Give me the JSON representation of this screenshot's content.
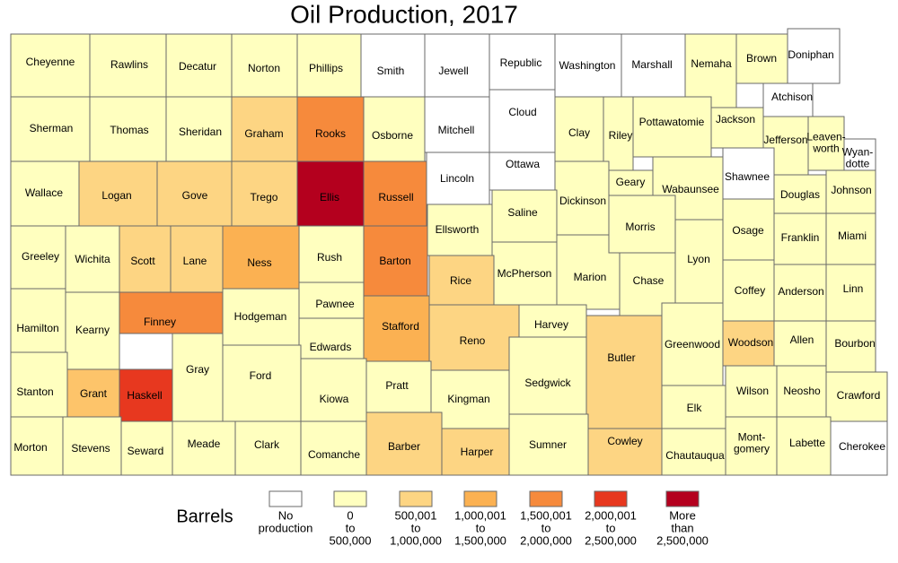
{
  "title": "Oil Production, 2017",
  "legend": {
    "title": "Barrels",
    "items": [
      {
        "label": [
          "No",
          "production"
        ],
        "color": "#ffffff"
      },
      {
        "label": [
          "0",
          "to",
          "500,000"
        ],
        "color": "#ffffbf"
      },
      {
        "label": [
          "500,001",
          "to",
          "1,000,000"
        ],
        "color": "#fdd583"
      },
      {
        "label": [
          "1,000,001",
          "to",
          "1,500,000"
        ],
        "color": "#fbb152"
      },
      {
        "label": [
          "1,500,001",
          "to",
          "2,000,000"
        ],
        "color": "#f68a3c"
      },
      {
        "label": [
          "2,000,001",
          "to",
          "2,500,000"
        ],
        "color": "#e7381f"
      },
      {
        "label": [
          "More",
          "than",
          "2,500,000"
        ],
        "color": "#b4001e"
      }
    ]
  },
  "counties": [
    {
      "name": "Cheyenne",
      "color": "#ffffbf"
    },
    {
      "name": "Rawlins",
      "color": "#ffffbf"
    },
    {
      "name": "Decatur",
      "color": "#ffffbf"
    },
    {
      "name": "Norton",
      "color": "#ffffbf"
    },
    {
      "name": "Phillips",
      "color": "#ffffbf"
    },
    {
      "name": "Smith",
      "color": "#ffffff"
    },
    {
      "name": "Jewell",
      "color": "#ffffff"
    },
    {
      "name": "Republic",
      "color": "#ffffff"
    },
    {
      "name": "Washington",
      "color": "#ffffff"
    },
    {
      "name": "Marshall",
      "color": "#ffffff"
    },
    {
      "name": "Nemaha",
      "color": "#ffffbf"
    },
    {
      "name": "Brown",
      "color": "#ffffbf"
    },
    {
      "name": "Doniphan",
      "color": "#ffffff"
    },
    {
      "name": "Sherman",
      "color": "#ffffbf"
    },
    {
      "name": "Thomas",
      "color": "#ffffbf"
    },
    {
      "name": "Sheridan",
      "color": "#ffffbf"
    },
    {
      "name": "Graham",
      "color": "#fdd583"
    },
    {
      "name": "Rooks",
      "color": "#f68a3c"
    },
    {
      "name": "Osborne",
      "color": "#ffffbf"
    },
    {
      "name": "Mitchell",
      "color": "#ffffff"
    },
    {
      "name": "Cloud",
      "color": "#ffffff"
    },
    {
      "name": "Clay",
      "color": "#ffffbf"
    },
    {
      "name": "Riley",
      "color": "#ffffbf"
    },
    {
      "name": "Pottawatomie",
      "color": "#ffffbf"
    },
    {
      "name": "Jackson",
      "color": "#ffffbf"
    },
    {
      "name": "Atchison",
      "color": "#ffffff"
    },
    {
      "name": "Jefferson",
      "color": "#ffffbf"
    },
    {
      "name": [
        "Leaven-",
        "worth"
      ],
      "color": "#ffffbf"
    },
    {
      "name": [
        "Wyan-",
        "dotte"
      ],
      "color": "#ffffff"
    },
    {
      "name": "Wallace",
      "color": "#ffffbf"
    },
    {
      "name": "Logan",
      "color": "#fdd583"
    },
    {
      "name": "Gove",
      "color": "#fdd583"
    },
    {
      "name": "Trego",
      "color": "#fdd583"
    },
    {
      "name": "Ellis",
      "color": "#b4001e"
    },
    {
      "name": "Russell",
      "color": "#f68a3c"
    },
    {
      "name": "Lincoln",
      "color": "#ffffff"
    },
    {
      "name": "Ottawa",
      "color": "#ffffff"
    },
    {
      "name": "Dickinson",
      "color": "#ffffbf"
    },
    {
      "name": "Geary",
      "color": "#ffffbf"
    },
    {
      "name": "Wabaunsee",
      "color": "#ffffbf"
    },
    {
      "name": "Shawnee",
      "color": "#ffffff"
    },
    {
      "name": "Douglas",
      "color": "#ffffbf"
    },
    {
      "name": "Johnson",
      "color": "#ffffbf"
    },
    {
      "name": "Greeley",
      "color": "#ffffbf"
    },
    {
      "name": "Wichita",
      "color": "#ffffbf"
    },
    {
      "name": "Scott",
      "color": "#fdd583"
    },
    {
      "name": "Lane",
      "color": "#fdd583"
    },
    {
      "name": "Ness",
      "color": "#fbb152"
    },
    {
      "name": "Rush",
      "color": "#ffffbf"
    },
    {
      "name": "Barton",
      "color": "#f68a3c"
    },
    {
      "name": "Ellsworth",
      "color": "#ffffbf"
    },
    {
      "name": "Saline",
      "color": "#ffffbf"
    },
    {
      "name": "McPherson",
      "color": "#ffffbf"
    },
    {
      "name": "Marion",
      "color": "#ffffbf"
    },
    {
      "name": "Morris",
      "color": "#ffffbf"
    },
    {
      "name": "Chase",
      "color": "#ffffbf"
    },
    {
      "name": "Lyon",
      "color": "#ffffbf"
    },
    {
      "name": "Osage",
      "color": "#ffffbf"
    },
    {
      "name": "Franklin",
      "color": "#ffffbf"
    },
    {
      "name": "Miami",
      "color": "#ffffbf"
    },
    {
      "name": "Hamilton",
      "color": "#ffffbf"
    },
    {
      "name": "Kearny",
      "color": "#ffffbf"
    },
    {
      "name": "Finney",
      "color": "#f68a3c"
    },
    {
      "name": "Hodgeman",
      "color": "#ffffbf"
    },
    {
      "name": "Pawnee",
      "color": "#ffffbf"
    },
    {
      "name": "Edwards",
      "color": "#ffffbf"
    },
    {
      "name": "Stafford",
      "color": "#fbb152"
    },
    {
      "name": "Rice",
      "color": "#fdd583"
    },
    {
      "name": "Reno",
      "color": "#fdd583"
    },
    {
      "name": "Harvey",
      "color": "#ffffbf"
    },
    {
      "name": "Butler",
      "color": "#fdd583"
    },
    {
      "name": "Greenwood",
      "color": "#ffffbf"
    },
    {
      "name": "Woodson",
      "color": "#fdd583"
    },
    {
      "name": "Coffey",
      "color": "#ffffbf"
    },
    {
      "name": "Anderson",
      "color": "#ffffbf"
    },
    {
      "name": "Linn",
      "color": "#ffffbf"
    },
    {
      "name": "Allen",
      "color": "#ffffbf"
    },
    {
      "name": "Bourbon",
      "color": "#ffffbf"
    },
    {
      "name": "Stanton",
      "color": "#ffffbf"
    },
    {
      "name": "Grant",
      "color": "#fdc46a"
    },
    {
      "name": "Haskell",
      "color": "#e7381f"
    },
    {
      "name": "Gray",
      "color": "#ffffbf"
    },
    {
      "name": "Ford",
      "color": "#ffffbf"
    },
    {
      "name": "Kiowa",
      "color": "#ffffbf"
    },
    {
      "name": "Pratt",
      "color": "#ffffbf"
    },
    {
      "name": "Kingman",
      "color": "#ffffbf"
    },
    {
      "name": "Sedgwick",
      "color": "#ffffbf"
    },
    {
      "name": "Elk",
      "color": "#ffffbf"
    },
    {
      "name": "Wilson",
      "color": "#ffffbf"
    },
    {
      "name": "Neosho",
      "color": "#ffffbf"
    },
    {
      "name": "Crawford",
      "color": "#ffffbf"
    },
    {
      "name": "Morton",
      "color": "#ffffbf"
    },
    {
      "name": "Stevens",
      "color": "#ffffbf"
    },
    {
      "name": "Seward",
      "color": "#ffffbf"
    },
    {
      "name": "Meade",
      "color": "#ffffbf"
    },
    {
      "name": "Clark",
      "color": "#ffffbf"
    },
    {
      "name": "Comanche",
      "color": "#ffffbf"
    },
    {
      "name": "Barber",
      "color": "#fdd583"
    },
    {
      "name": "Harper",
      "color": "#fdd583"
    },
    {
      "name": "Sumner",
      "color": "#ffffbf"
    },
    {
      "name": "Cowley",
      "color": "#fdd583"
    },
    {
      "name": "Chautauqua",
      "color": "#ffffbf"
    },
    {
      "name": [
        "Mont-",
        "gomery"
      ],
      "color": "#ffffbf"
    },
    {
      "name": "Labette",
      "color": "#ffffbf"
    },
    {
      "name": "Cherokee",
      "color": "#ffffff"
    }
  ]
}
